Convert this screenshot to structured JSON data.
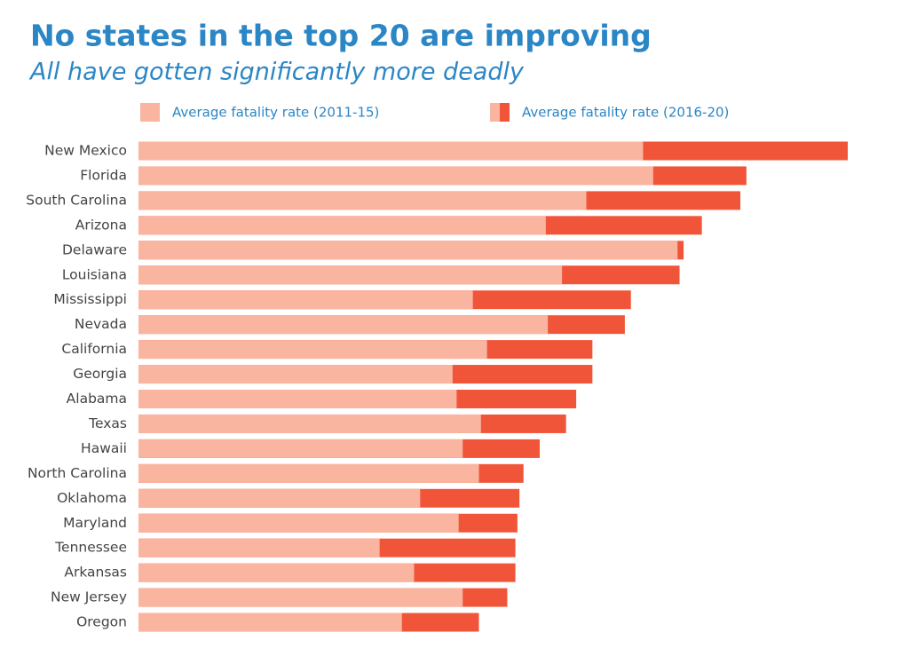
{
  "chart_data": {
    "type": "overlap-bar",
    "title": "No states in the top 20 are improving",
    "subtitle": "All have gotten significantly more deadly",
    "categories": [
      "New Mexico",
      "Florida",
      "South Carolina",
      "Arizona",
      "Delaware",
      "Louisiana",
      "Mississippi",
      "Nevada",
      "California",
      "Georgia",
      "Alabama",
      "Texas",
      "Hawaii",
      "North Carolina",
      "Oklahoma",
      "Maryland",
      "Tennessee",
      "Arkansas",
      "New Jersey",
      "Oregon"
    ],
    "series": [
      {
        "name": "Average fatality rate (2011-15)",
        "color": "#f9b5a0",
        "values": [
          2.49,
          2.54,
          2.21,
          2.01,
          2.66,
          2.09,
          1.65,
          2.02,
          1.72,
          1.55,
          1.57,
          1.69,
          1.6,
          1.68,
          1.39,
          1.58,
          1.19,
          1.36,
          1.6,
          1.3
        ]
      },
      {
        "name": "Average fatality rate (2016-20)",
        "color": "#f15539",
        "values": [
          3.5,
          3.0,
          2.97,
          2.78,
          2.69,
          2.67,
          2.43,
          2.4,
          2.24,
          2.24,
          2.16,
          2.11,
          1.98,
          1.9,
          1.88,
          1.87,
          1.86,
          1.86,
          1.82,
          1.68
        ]
      }
    ]
  }
}
